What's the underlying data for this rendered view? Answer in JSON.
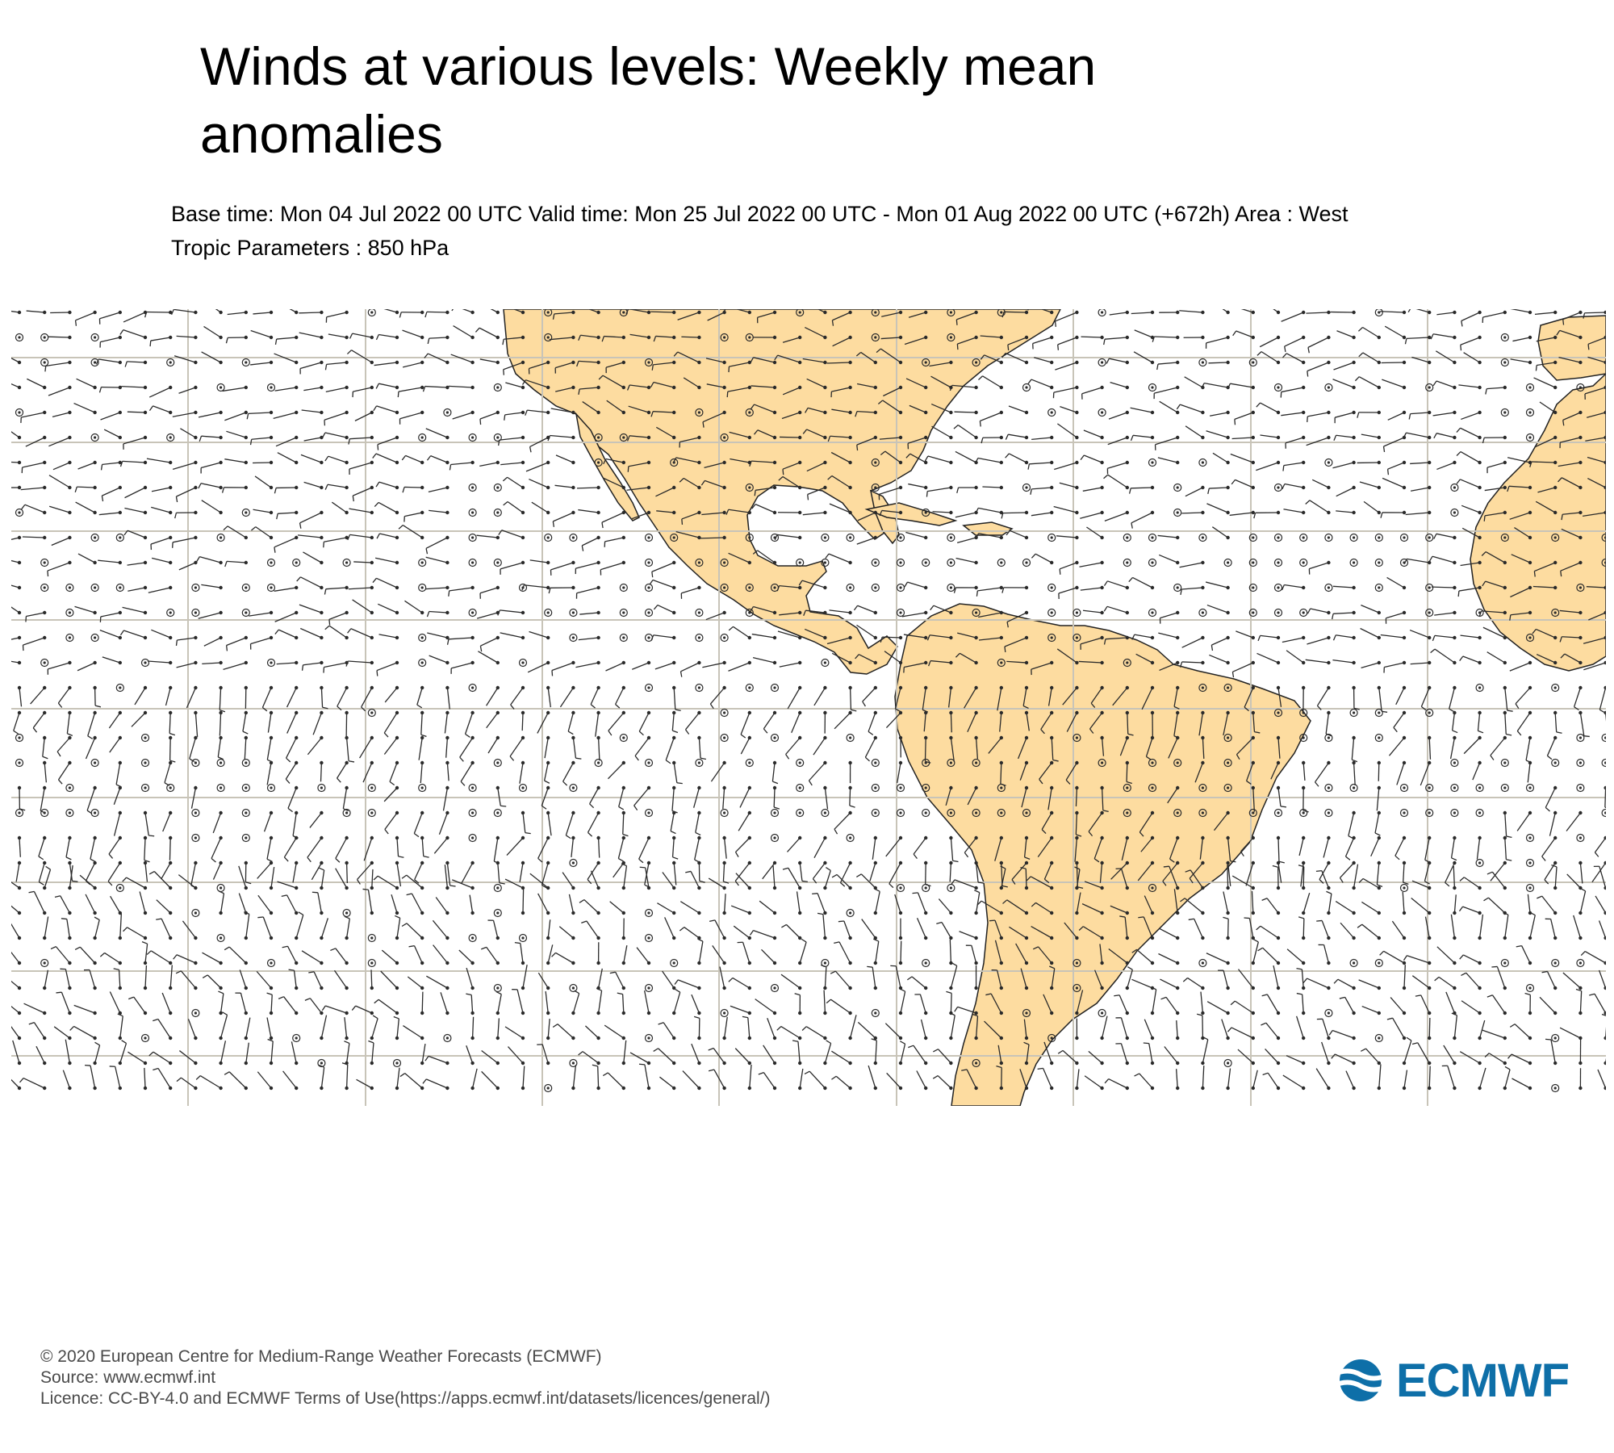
{
  "title": "Winds at various levels: Weekly mean anomalies",
  "subtitle": {
    "line1": "Base time: Mon 04 Jul 2022 00 UTC Valid time: Mon 25 Jul 2022 00 UTC - Mon 01 Aug 2022 00 UTC (+672h) Area : West",
    "line2": "Tropic Parameters : 850 hPa"
  },
  "map": {
    "region": "West Tropics",
    "level": "850 hPa",
    "land_color": "#fddca0",
    "ocean_color": "#ffffff",
    "grid_color": "#c8c4b8",
    "barb_color": "#2a2a2a",
    "symbols": [
      "wind-barb",
      "calm-circle"
    ]
  },
  "footer": {
    "line1": "© 2020 European Centre for Medium-Range Weather Forecasts (ECMWF)",
    "line2": "Source: www.ecmwf.int",
    "line3": "Licence: CC-BY-4.0 and ECMWF Terms of Use(https://apps.ecmwf.int/datasets/licences/general/)"
  },
  "logo": {
    "text": "ECMWF",
    "color": "#0e6fa8",
    "icon": "ecmwf-logo-icon"
  }
}
